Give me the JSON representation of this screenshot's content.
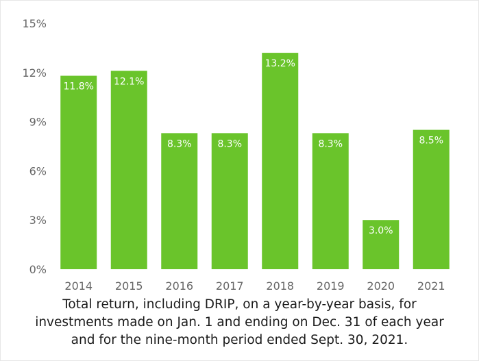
{
  "chart_data": {
    "type": "bar",
    "categories": [
      "2014",
      "2015",
      "2016",
      "2017",
      "2018",
      "2019",
      "2020",
      "2021"
    ],
    "values": [
      11.8,
      12.1,
      8.3,
      8.3,
      13.2,
      8.3,
      3.0,
      8.5
    ],
    "data_labels": [
      "11.8%",
      "12.1%",
      "8.3%",
      "8.3%",
      "13.2%",
      "8.3%",
      "3.0%",
      "8.5%"
    ],
    "y_ticks": [
      0,
      3,
      6,
      9,
      12,
      15
    ],
    "y_tick_labels": [
      "0%",
      "3%",
      "6%",
      "9%",
      "12%",
      "15%"
    ],
    "ylim": [
      0,
      15
    ],
    "grid": false,
    "bar_color": "#6ac42b",
    "title": "",
    "xlabel": "",
    "ylabel": ""
  },
  "caption": {
    "line1": "Total return, including DRIP, on a year-by-year basis, for",
    "line2": "investments made on Jan. 1 and ending on Dec. 31 of each year",
    "line3": "and for the nine-month period ended Sept. 30, 2021."
  }
}
